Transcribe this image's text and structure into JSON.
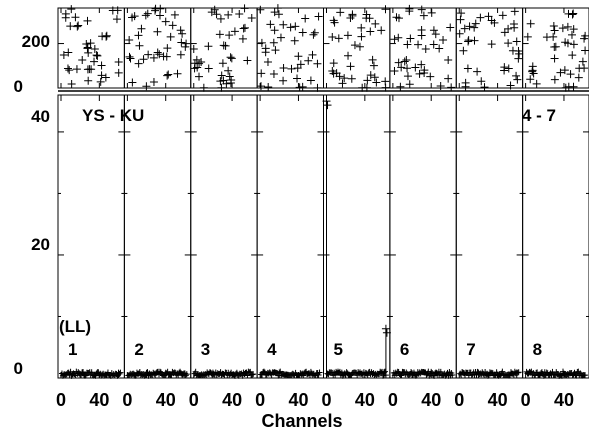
{
  "chart_data": {
    "type": "scatter",
    "title": "",
    "xlabel": "Channels",
    "ylabel": "",
    "baseline_label": "YS - KU",
    "baseline_range": "4 - 7",
    "polarization": "(LL)",
    "x_ticks": [
      "0",
      "40"
    ],
    "phase_panel": {
      "ylabel": "",
      "ylim": [
        0,
        360
      ],
      "y_ticks": [
        "0",
        "200"
      ],
      "note": "phase values scattered uniformly across 0-360 deg in every subpanel"
    },
    "amplitude_panel": {
      "ylim": [
        0,
        46
      ],
      "y_ticks": [
        "0",
        "20",
        "40"
      ]
    },
    "xlim": [
      0,
      63
    ],
    "grid": false,
    "panels": [
      {
        "label": "1",
        "amp": 0.7
      },
      {
        "label": "2",
        "amp": 0.7
      },
      {
        "label": "3",
        "amp": 0.7
      },
      {
        "label": "4",
        "amp": 0.7
      },
      {
        "label": "5",
        "amp": 0.7,
        "spikes": [
          {
            "x": 0,
            "y": 45
          },
          {
            "x": 62,
            "y": 8
          }
        ]
      },
      {
        "label": "6",
        "amp": 0.7
      },
      {
        "label": "7",
        "amp": 0.7
      },
      {
        "label": "8",
        "amp": 0.7
      }
    ]
  }
}
